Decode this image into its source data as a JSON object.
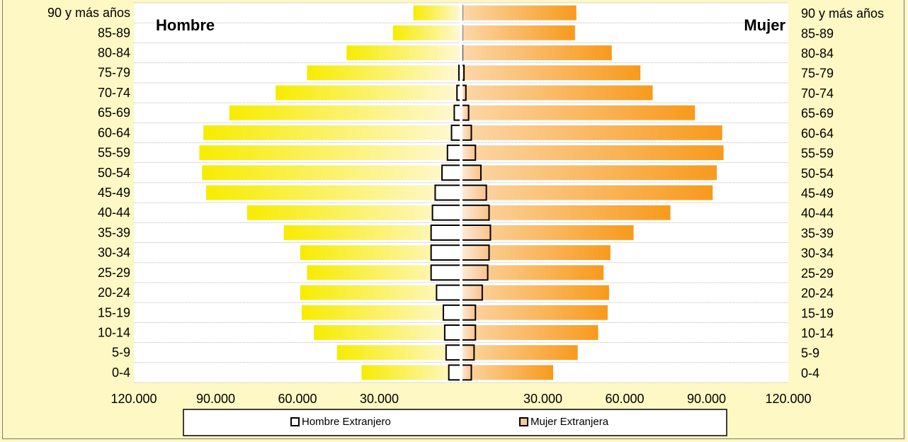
{
  "chart_data": {
    "type": "bar",
    "orientation": "horizontal",
    "subtype": "population-pyramid",
    "title": "",
    "categories": [
      "0-4",
      "5-9",
      "10-14",
      "15-19",
      "20-24",
      "25-29",
      "30-34",
      "35-39",
      "40-44",
      "45-49",
      "50-54",
      "55-59",
      "60-64",
      "65-69",
      "70-74",
      "75-79",
      "80-84",
      "85-89",
      "90 y más años"
    ],
    "series": [
      {
        "name": "Hombre",
        "side": "left",
        "color": "#ffee00",
        "values": [
          36500,
          45500,
          54000,
          58500,
          59000,
          56500,
          59000,
          65000,
          78500,
          93500,
          95000,
          96000,
          94500,
          85000,
          68000,
          56500,
          42000,
          25000,
          17500
        ]
      },
      {
        "name": "Mujer",
        "side": "right",
        "color": "#f9a22e",
        "values": [
          33500,
          42500,
          50000,
          53500,
          54000,
          52000,
          54500,
          63000,
          76500,
          92000,
          93500,
          96000,
          95500,
          85500,
          70000,
          65500,
          55000,
          41500,
          42000
        ]
      },
      {
        "name": "Hombre Extranjero",
        "side": "left",
        "color": "#ffffff",
        "values": [
          4500,
          5500,
          6000,
          6500,
          9000,
          11000,
          11000,
          11000,
          10500,
          9500,
          7000,
          5000,
          3500,
          2500,
          1500,
          800,
          200,
          100,
          100
        ]
      },
      {
        "name": "Mujer Extranjera",
        "side": "right",
        "color": "#fcc897",
        "values": [
          3500,
          4500,
          5000,
          5000,
          7500,
          9500,
          10000,
          10500,
          10000,
          9000,
          7000,
          5000,
          3500,
          2500,
          1500,
          800,
          200,
          100,
          100
        ]
      }
    ],
    "xlim": [
      -120000,
      120000
    ],
    "xticks": [
      -120000,
      -90000,
      -60000,
      -30000,
      30000,
      60000,
      90000,
      120000
    ],
    "xtick_labels": [
      "120.000",
      "90.000",
      "60.000",
      "30.000",
      "30.000",
      "60.000",
      "90.000",
      "120.000"
    ],
    "grid": "horizontal",
    "legend_position": "bottom",
    "labels": {
      "left": "Hombre",
      "right": "Mujer"
    },
    "legend": [
      "Hombre Extranjero",
      "Mujer Extranjera"
    ]
  }
}
